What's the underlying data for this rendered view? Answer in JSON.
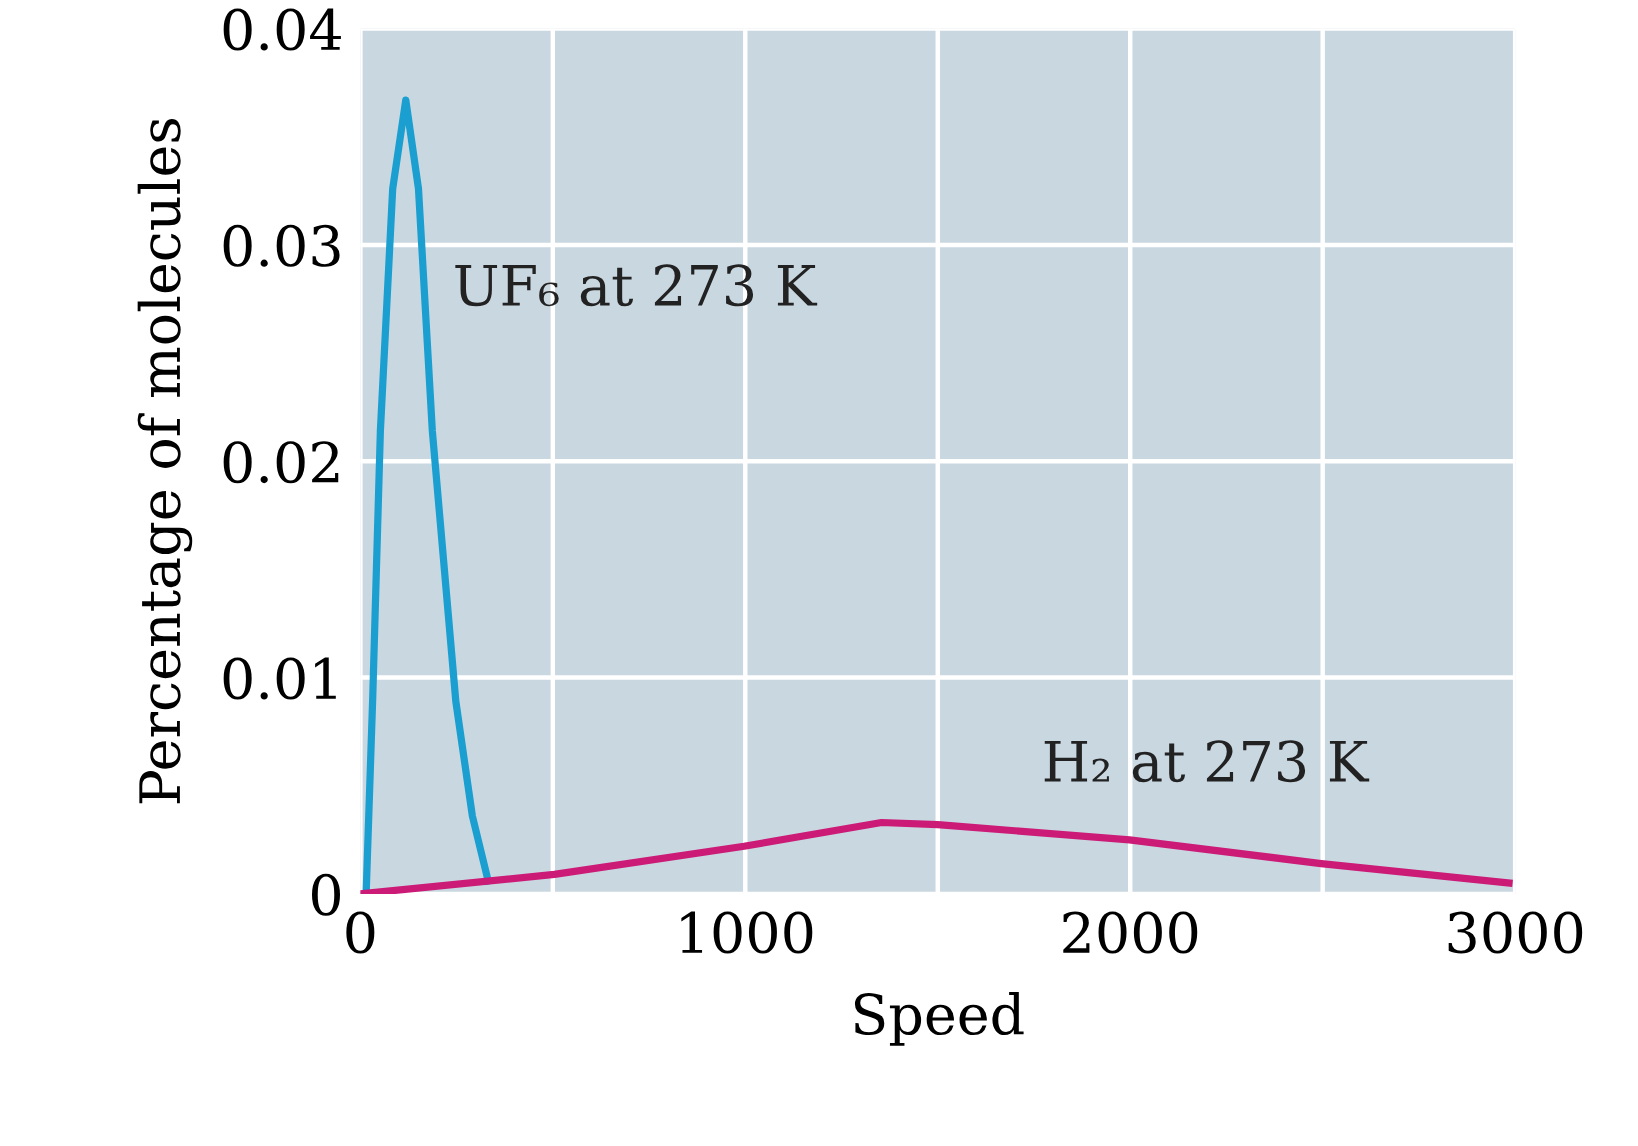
{
  "chart_data": {
    "type": "line",
    "xlabel": "Speed",
    "ylabel": "Percentage of molecules",
    "series": [
      {
        "name": "UF₆ at 273 K",
        "color": "#1a9fd0",
        "x": [
          15,
          32,
          52,
          84,
          118,
          151,
          187,
          248,
          291,
          332
        ],
        "values": [
          0,
          0.009,
          0.0214,
          0.0326,
          0.0367,
          0.0326,
          0.0214,
          0.0089,
          0.0036,
          0.0006
        ]
      },
      {
        "name": "H₂ at 273 K",
        "color": "#cc1a77",
        "x": [
          0,
          504,
          997,
          1354,
          1500,
          1998,
          2496,
          2984
        ],
        "values": [
          0,
          0.0009,
          0.0022,
          0.0033,
          0.0032,
          0.0025,
          0.0014,
          0.0005
        ]
      }
    ],
    "xlim": [
      0,
      3000
    ],
    "ylim": [
      0,
      0.04
    ],
    "xticks": [
      0,
      {
        "value": 500,
        "label": null
      },
      1000,
      {
        "value": 1500,
        "label": null
      },
      2000,
      {
        "value": 2500,
        "label": null
      },
      3000
    ],
    "yticks": [
      0,
      0.01,
      0.02,
      0.03,
      0.04
    ],
    "grid": true,
    "legend": false,
    "marker": "none",
    "line_style": "solid"
  }
}
